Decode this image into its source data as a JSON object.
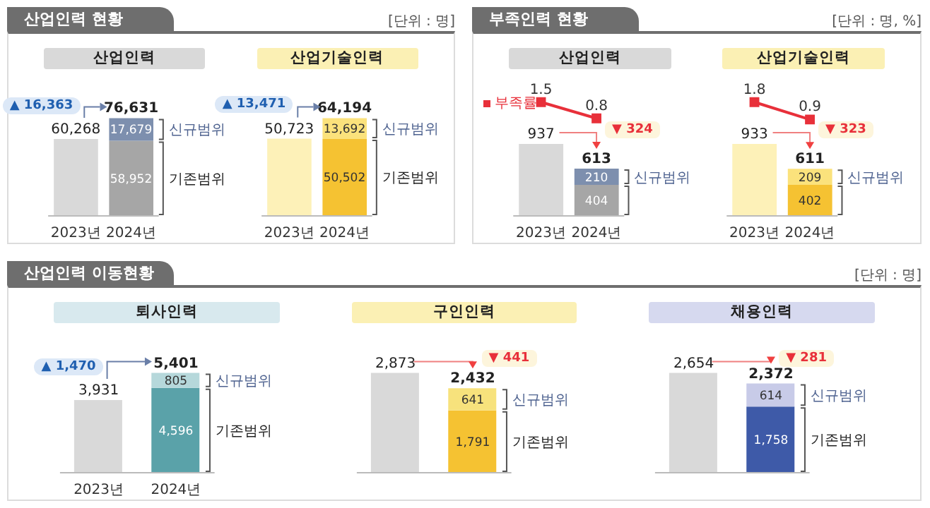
{
  "chart_data": [
    {
      "type": "other",
      "title": "산업인력 현황",
      "annotations": [
        "[단위 : 명]"
      ]
    },
    {
      "type": "bar",
      "title": "산업인력",
      "categories": [
        "2023년",
        "2024년"
      ],
      "stacked": true,
      "series": [
        {
          "name": "기존범위",
          "colors": [
            "#d9d9d9",
            "#a6a6a6"
          ],
          "values": [
            60268,
            58952
          ],
          "value_labels": [
            null,
            "58,952"
          ]
        },
        {
          "name": "신규범위",
          "color": "#7d8fae",
          "values": [
            null,
            17679
          ],
          "value_labels": [
            null,
            "17,679"
          ]
        }
      ],
      "totals": [
        "60,268",
        "76,631"
      ],
      "annotations": [
        "▲ 16,363"
      ]
    },
    {
      "type": "bar",
      "title": "산업기술인력",
      "categories": [
        "2023년",
        "2024년"
      ],
      "stacked": true,
      "series": [
        {
          "name": "기존범위",
          "colors": [
            "#fdf1b8",
            "#f5c232"
          ],
          "values": [
            50723,
            50502
          ],
          "value_labels": [
            null,
            "50,502"
          ]
        },
        {
          "name": "신규범위",
          "color": "#fbe27c",
          "values": [
            null,
            13692
          ],
          "value_labels": [
            null,
            "13,692"
          ]
        }
      ],
      "totals": [
        "50,723",
        "64,194"
      ],
      "annotations": [
        "▲ 13,471"
      ]
    },
    {
      "type": "other",
      "title": "부족인력 현황",
      "annotations": [
        "[단위 : 명, %]"
      ]
    },
    {
      "type": "line",
      "title": "산업인력",
      "categories": [
        null,
        null
      ],
      "legend": "top left",
      "marker": "square",
      "series": [
        {
          "name": "부족률",
          "color": "#e8303a",
          "values": [
            1.5,
            0.8
          ],
          "value_labels": [
            "1.5",
            "0.8"
          ]
        }
      ]
    },
    {
      "type": "bar",
      "categories": [
        "2023년",
        "2024년"
      ],
      "stacked": true,
      "series": [
        {
          "colors": [
            "#d9d9d9",
            "#a6a6a6"
          ],
          "values": [
            937,
            404
          ],
          "value_labels": [
            null,
            "404"
          ]
        },
        {
          "name": "신규범위",
          "color": "#7d8fae",
          "values": [
            null,
            210
          ],
          "value_labels": [
            null,
            "210"
          ]
        }
      ],
      "totals": [
        "937",
        "613"
      ],
      "annotations": [
        "▼ 324"
      ]
    },
    {
      "type": "line",
      "title": "산업기술인력",
      "categories": [
        null,
        null
      ],
      "marker": "square",
      "series": [
        {
          "color": "#e8303a",
          "values": [
            1.8,
            0.9
          ],
          "value_labels": [
            "1.8",
            "0.9"
          ]
        }
      ]
    },
    {
      "type": "bar",
      "categories": [
        "2023년",
        "2024년"
      ],
      "stacked": true,
      "series": [
        {
          "colors": [
            "#fdf1b8",
            "#f5c232"
          ],
          "values": [
            933,
            402
          ],
          "value_labels": [
            null,
            "402"
          ]
        },
        {
          "name": "신규범위",
          "color": "#fbe27c",
          "values": [
            null,
            209
          ],
          "value_labels": [
            null,
            "209"
          ]
        }
      ],
      "totals": [
        "933",
        "611"
      ],
      "annotations": [
        "▼ 323"
      ]
    },
    {
      "type": "other",
      "title": "산업인력 이동현황",
      "annotations": [
        "[단위 : 명]"
      ]
    },
    {
      "type": "bar",
      "title": "퇴사인력",
      "categories": [
        "2023년",
        "2024년"
      ],
      "stacked": true,
      "series": [
        {
          "name": "기존범위",
          "colors": [
            "#d9d9d9",
            "#5aa2a9"
          ],
          "values": [
            3931,
            4596
          ],
          "value_labels": [
            null,
            "4,596"
          ]
        },
        {
          "name": "신규범위",
          "color": "#b6d8db",
          "values": [
            null,
            805
          ],
          "value_labels": [
            null,
            "805"
          ]
        }
      ],
      "totals": [
        "3,931",
        "5,401"
      ],
      "annotations": [
        "▲ 1,470"
      ]
    },
    {
      "type": "bar",
      "title": "구인인력",
      "categories": [
        null,
        null
      ],
      "stacked": true,
      "series": [
        {
          "name": "기존범위",
          "colors": [
            "#d9d9d9",
            "#f5c232"
          ],
          "values": [
            2873,
            1791
          ],
          "value_labels": [
            null,
            "1,791"
          ]
        },
        {
          "name": "신규범위",
          "color": "#f7e27c",
          "values": [
            null,
            641
          ],
          "value_labels": [
            null,
            "641"
          ]
        }
      ],
      "totals": [
        "2,873",
        "2,432"
      ],
      "annotations": [
        "▼ 441"
      ]
    },
    {
      "type": "bar",
      "title": "채용인력",
      "categories": [
        null,
        null
      ],
      "stacked": true,
      "series": [
        {
          "name": "기존범위",
          "colors": [
            "#d9d9d9",
            "#3e5aa8"
          ],
          "values": [
            2654,
            1758
          ],
          "value_labels": [
            null,
            "1,758"
          ]
        },
        {
          "name": "신규범위",
          "color": "#c8cbe8",
          "values": [
            null,
            614
          ],
          "value_labels": [
            null,
            "614"
          ]
        }
      ],
      "totals": [
        "2,654",
        "2,372"
      ],
      "annotations": [
        "▼ 281"
      ]
    }
  ]
}
